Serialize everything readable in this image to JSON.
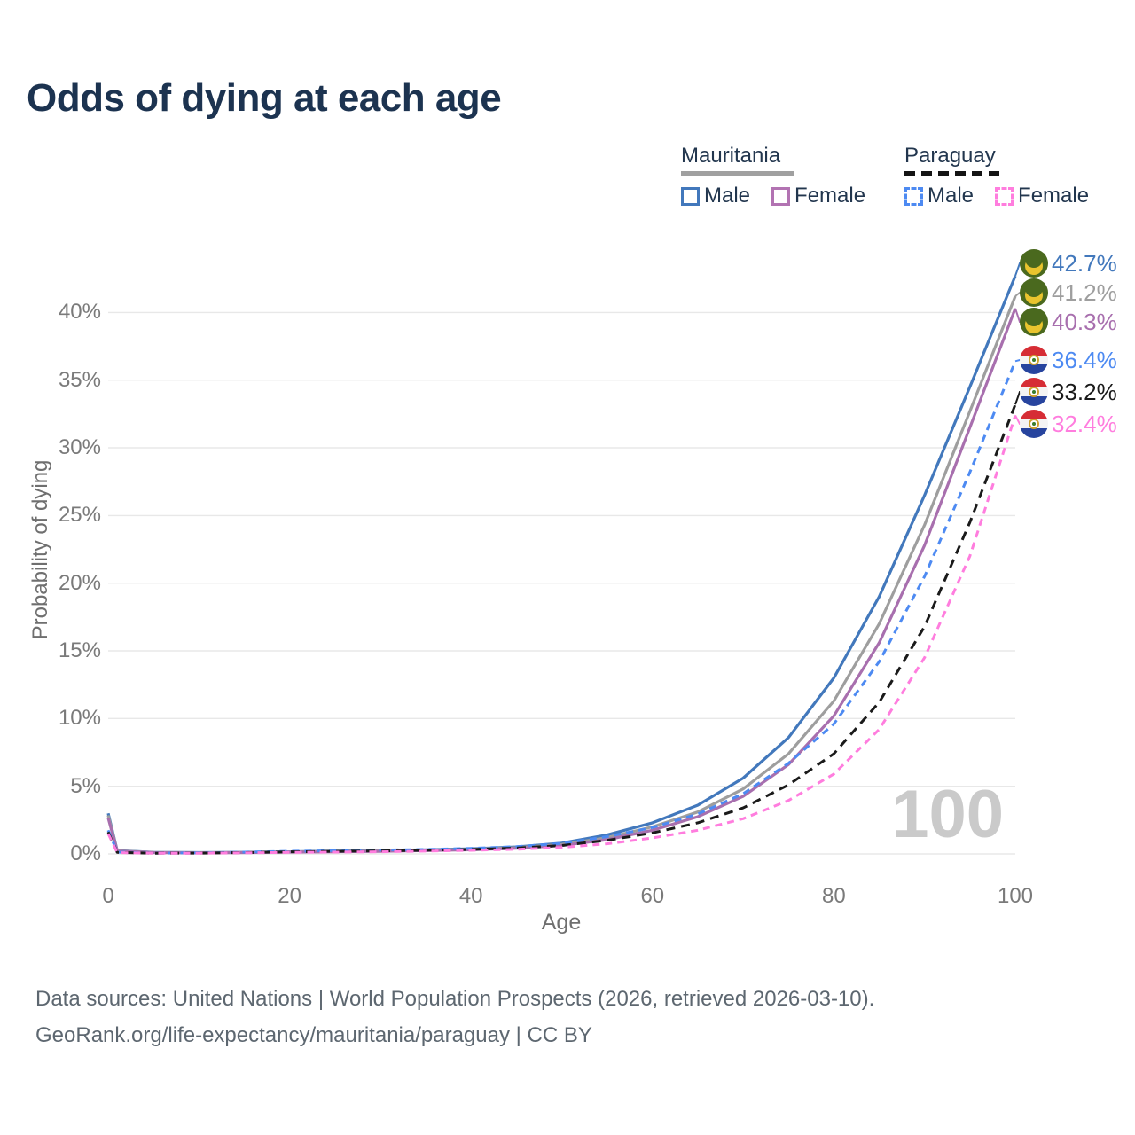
{
  "title": "Odds of dying at each age",
  "watermark": "100",
  "legend": {
    "groups": [
      {
        "name": "Mauritania",
        "line_style": "solid",
        "underline_color": "#a0a0a0",
        "items": [
          {
            "label": "Male",
            "color": "#4278bc"
          },
          {
            "label": "Female",
            "color": "#b273b2"
          }
        ]
      },
      {
        "name": "Paraguay",
        "line_style": "dashed",
        "underline_color": "#141414",
        "items": [
          {
            "label": "Male",
            "color": "#4d8af2"
          },
          {
            "label": "Female",
            "color": "#ff7dde"
          }
        ]
      }
    ]
  },
  "axes": {
    "y_label": "Probability of dying",
    "x_label": "Age",
    "y_ticks": [
      "0%",
      "5%",
      "10%",
      "15%",
      "20%",
      "25%",
      "30%",
      "35%",
      "40%"
    ],
    "x_ticks": [
      "0",
      "20",
      "40",
      "60",
      "80",
      "100"
    ]
  },
  "chart_data": {
    "type": "line",
    "title": "Odds of dying at each age",
    "xlabel": "Age",
    "ylabel": "Probability of dying",
    "xlim": [
      0,
      100
    ],
    "ylim_percent": [
      0,
      43
    ],
    "grid": "horizontal",
    "x": [
      0,
      1,
      5,
      10,
      15,
      20,
      25,
      30,
      35,
      40,
      45,
      50,
      55,
      60,
      65,
      70,
      75,
      80,
      85,
      90,
      95,
      100
    ],
    "series": [
      {
        "name": "Mauritania Male",
        "country": "Mauritania",
        "sex": "male",
        "flag": "mauritania",
        "color": "#4278bc",
        "dash": "solid",
        "end_label": "42.7%",
        "values": [
          3.0,
          0.25,
          0.12,
          0.1,
          0.12,
          0.16,
          0.2,
          0.25,
          0.3,
          0.38,
          0.52,
          0.8,
          1.4,
          2.3,
          3.6,
          5.6,
          8.6,
          13.0,
          19.0,
          26.5,
          34.5,
          42.7
        ]
      },
      {
        "name": "Mauritania Both sexes",
        "country": "Mauritania",
        "sex": "both",
        "flag": "mauritania",
        "color": "#9e9e9e",
        "dash": "solid",
        "end_label": "41.2%",
        "values": [
          2.85,
          0.23,
          0.11,
          0.09,
          0.11,
          0.14,
          0.18,
          0.22,
          0.27,
          0.34,
          0.46,
          0.7,
          1.2,
          2.0,
          3.1,
          4.8,
          7.4,
          11.3,
          17.0,
          24.3,
          32.7,
          41.2
        ]
      },
      {
        "name": "Mauritania Female",
        "country": "Mauritania",
        "sex": "female",
        "flag": "mauritania",
        "color": "#a86fae",
        "dash": "solid",
        "end_label": "40.3%",
        "values": [
          2.65,
          0.21,
          0.1,
          0.08,
          0.1,
          0.13,
          0.16,
          0.19,
          0.24,
          0.3,
          0.41,
          0.62,
          1.05,
          1.75,
          2.75,
          4.25,
          6.6,
          10.2,
          15.6,
          22.8,
          31.5,
          40.3
        ]
      },
      {
        "name": "Paraguay Male",
        "country": "Paraguay",
        "sex": "male",
        "flag": "paraguay",
        "color": "#4d8af2",
        "dash": "dashed",
        "end_label": "36.4%",
        "values": [
          1.75,
          0.13,
          0.06,
          0.08,
          0.13,
          0.19,
          0.24,
          0.28,
          0.33,
          0.41,
          0.54,
          0.78,
          1.28,
          1.95,
          2.95,
          4.45,
          6.7,
          9.6,
          14.2,
          20.5,
          28.2,
          36.4
        ]
      },
      {
        "name": "Paraguay Both sexes",
        "country": "Paraguay",
        "sex": "both",
        "flag": "paraguay",
        "color": "#1a1a1a",
        "dash": "dashed",
        "end_label": "33.2%",
        "values": [
          1.62,
          0.11,
          0.05,
          0.06,
          0.1,
          0.15,
          0.19,
          0.22,
          0.27,
          0.33,
          0.43,
          0.62,
          1.0,
          1.55,
          2.3,
          3.4,
          5.1,
          7.4,
          11.2,
          16.8,
          24.5,
          33.2
        ]
      },
      {
        "name": "Paraguay Female",
        "country": "Paraguay",
        "sex": "female",
        "flag": "paraguay",
        "color": "#ff7dde",
        "dash": "dashed",
        "end_label": "32.4%",
        "values": [
          1.5,
          0.1,
          0.05,
          0.05,
          0.08,
          0.11,
          0.13,
          0.16,
          0.2,
          0.26,
          0.34,
          0.48,
          0.75,
          1.18,
          1.75,
          2.6,
          3.95,
          5.9,
          9.2,
          14.5,
          22.0,
          32.4
        ]
      }
    ]
  },
  "footer": {
    "line1": "Data sources: United Nations | World Population Prospects (2026, retrieved 2026-03-10).",
    "line2": "GeoRank.org/life-expectancy/mauritania/paraguay | CC BY"
  }
}
